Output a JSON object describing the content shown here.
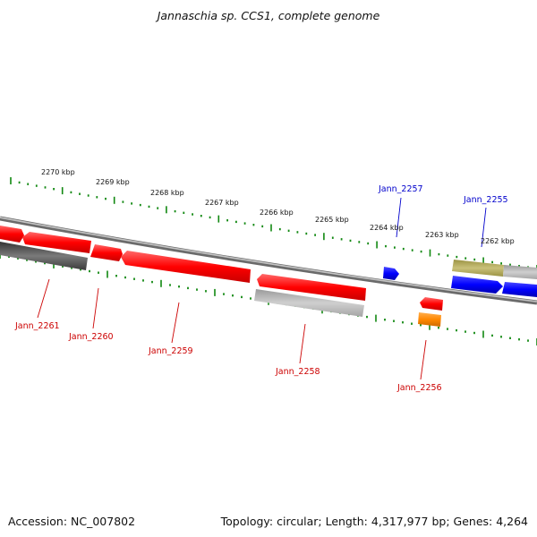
{
  "title": "Jannaschia sp. CCS1, complete genome",
  "footer": {
    "accession": "Accession: NC_007802",
    "stats": "Topology: circular; Length: 4,317,977 bp; Genes: 4,264"
  },
  "colors": {
    "forward_gene": "#ff0000",
    "reverse_gene": "#0000ff",
    "pseudo_gray": "#b5b5b5",
    "dark_gray": "#555555",
    "olive": "#b5ad5a",
    "orange": "#ff8800",
    "tick_green": "#118811",
    "label_forward": "#cc0000",
    "label_reverse": "#0000cc"
  },
  "scale_labels": [
    "2270 kbp",
    "2269 kbp",
    "2268 kbp",
    "2267 kbp",
    "2266 kbp",
    "2265 kbp",
    "2264 kbp",
    "2263 kbp",
    "2262 kbp"
  ],
  "gene_labels": [
    {
      "name": "Jann_2261",
      "strand": "forward"
    },
    {
      "name": "Jann_2260",
      "strand": "forward"
    },
    {
      "name": "Jann_2259",
      "strand": "forward"
    },
    {
      "name": "Jann_2258",
      "strand": "forward"
    },
    {
      "name": "Jann_2256",
      "strand": "forward"
    },
    {
      "name": "Jann_2257",
      "strand": "reverse"
    },
    {
      "name": "Jann_2255",
      "strand": "reverse"
    }
  ]
}
